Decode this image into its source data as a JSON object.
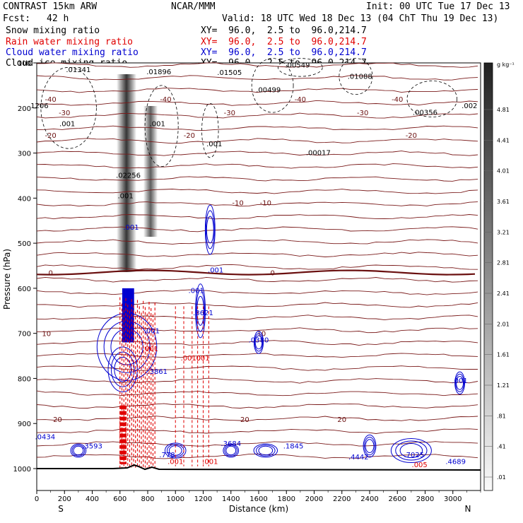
{
  "header": {
    "model": "CONTRAST 15km ARW",
    "org": "NCAR/MMM",
    "init": "Init: 00 UTC Tue 17 Dec 13",
    "fcst_label": "Fcst:",
    "fcst_value": "42 h",
    "valid": "Valid: 18 UTC Wed 18 Dec 13 (04 ChT Thu 19 Dec 13)",
    "fields": [
      {
        "name": "Snow mixing ratio",
        "xy": "XY=  96.0,  2.5 to  96.0,214.7",
        "color": "#000000"
      },
      {
        "name": "Rain water mixing ratio",
        "xy": "XY=  96.0,  2.5 to  96.0,214.7",
        "color": "#e00000"
      },
      {
        "name": "Cloud water mixing ratio",
        "xy": "XY=  96.0,  2.5 to  96.0,214.7",
        "color": "#0000d0"
      },
      {
        "name": "Cloud ice mixing ratio",
        "xy": "XY=  96.0,  2.5 to  96.0,214.7",
        "color": "#000000"
      }
    ]
  },
  "chart_data": {
    "type": "contour-cross-section",
    "xlabel": "Distance (km)",
    "ylabel": "Pressure (hPa)",
    "xlim": [
      0,
      3200
    ],
    "ylim": [
      1000,
      100
    ],
    "x_ticks": [
      "0",
      "200",
      "400",
      "600",
      "800",
      "1000",
      "1200",
      "1400",
      "1600",
      "1800",
      "2000",
      "2200",
      "2400",
      "2600",
      "2800",
      "3000"
    ],
    "y_ticks": [
      "100",
      "200",
      "300",
      "400",
      "500",
      "600",
      "700",
      "800",
      "900",
      "1000"
    ],
    "x_end_labels": {
      "left": "S",
      "right": "N"
    },
    "colorbar": {
      "unit": "g kg⁻¹",
      "labels": [
        "4.81",
        "4.41",
        "4.01",
        "3.61",
        "3.21",
        "2.81",
        "2.41",
        "2.01",
        "1.61",
        "1.21",
        ".81",
        ".41",
        ".01"
      ]
    },
    "temperature_isotherms": [
      {
        "label": "-40",
        "p": 180,
        "label_x": [
          100,
          930,
          1900,
          2600
        ]
      },
      {
        "label": "-30",
        "p": 210,
        "label_x": [
          200,
          1390,
          2350
        ]
      },
      {
        "label": "-20",
        "p": 260,
        "label_x": [
          100,
          1100,
          2700
        ]
      },
      {
        "label": "-10",
        "p": 410,
        "label_x": [
          1450,
          1650
        ]
      },
      {
        "label": "0",
        "p": 565,
        "label_x": [
          100,
          1700
        ]
      },
      {
        "label": "10",
        "p": 700,
        "label_x": [
          70,
          1620
        ]
      },
      {
        "label": "20",
        "p": 890,
        "label_x": [
          150,
          1500,
          2200
        ]
      }
    ],
    "annotations": [
      {
        "text": ".01341",
        "x": 300,
        "p": 120,
        "color": "black"
      },
      {
        "text": ".01896",
        "x": 880,
        "p": 125,
        "color": "black"
      },
      {
        "text": ".01505",
        "x": 1390,
        "p": 127,
        "color": "black"
      },
      {
        "text": ".00549",
        "x": 1880,
        "p": 110,
        "color": "black"
      },
      {
        "text": ".01088",
        "x": 2330,
        "p": 135,
        "color": "black"
      },
      {
        "text": ".00499",
        "x": 1670,
        "p": 165,
        "color": "black"
      },
      {
        "text": "1206",
        "x": 20,
        "p": 200,
        "color": "black"
      },
      {
        "text": ".002",
        "x": 3120,
        "p": 200,
        "color": "black"
      },
      {
        "text": ".00356",
        "x": 2800,
        "p": 215,
        "color": "black"
      },
      {
        "text": ".001",
        "x": 220,
        "p": 240,
        "color": "black"
      },
      {
        "text": ".001",
        "x": 870,
        "p": 240,
        "color": "black"
      },
      {
        "text": ".001",
        "x": 1280,
        "p": 285,
        "color": "black"
      },
      {
        "text": ".00017",
        "x": 2030,
        "p": 305,
        "color": "black"
      },
      {
        "text": ".02256",
        "x": 660,
        "p": 355,
        "color": "black"
      },
      {
        "text": ".001",
        "x": 640,
        "p": 400,
        "color": "black"
      },
      {
        "text": ".001",
        "x": 680,
        "p": 470,
        "color": "blue"
      },
      {
        "text": ".001",
        "x": 1290,
        "p": 565,
        "color": "blue"
      },
      {
        "text": ".001",
        "x": 1150,
        "p": 610,
        "color": "blue"
      },
      {
        "text": ".3621",
        "x": 1200,
        "p": 660,
        "color": "blue"
      },
      {
        "text": ".0380",
        "x": 1600,
        "p": 720,
        "color": "blue"
      },
      {
        "text": ".001",
        "x": 820,
        "p": 740,
        "color": "red"
      },
      {
        "text": ".001",
        "x": 830,
        "p": 700,
        "color": "blue"
      },
      {
        "text": ".0010",
        "x": 1110,
        "p": 760,
        "color": "red"
      },
      {
        "text": ".001",
        "x": 1190,
        "p": 760,
        "color": "red"
      },
      {
        "text": ".3861",
        "x": 870,
        "p": 790,
        "color": "blue"
      },
      {
        "text": ".001",
        "x": 3050,
        "p": 810,
        "color": "blue"
      },
      {
        "text": ".0434",
        "x": 60,
        "p": 935,
        "color": "blue"
      },
      {
        "text": ".3593",
        "x": 400,
        "p": 955,
        "color": "blue"
      },
      {
        "text": ".3684",
        "x": 1400,
        "p": 950,
        "color": "blue"
      },
      {
        "text": ".1845",
        "x": 1850,
        "p": 955,
        "color": "blue"
      },
      {
        "text": ".4442",
        "x": 2320,
        "p": 980,
        "color": "blue"
      },
      {
        "text": ".7025",
        "x": 2720,
        "p": 975,
        "color": "blue"
      },
      {
        "text": ".4689",
        "x": 3020,
        "p": 990,
        "color": "blue"
      },
      {
        "text": ".778",
        "x": 940,
        "p": 975,
        "color": "blue"
      },
      {
        "text": ".001",
        "x": 1000,
        "p": 990,
        "color": "red"
      },
      {
        "text": ".001",
        "x": 1250,
        "p": 990,
        "color": "red"
      },
      {
        "text": ".005",
        "x": 2760,
        "p": 997,
        "color": "red"
      }
    ]
  }
}
